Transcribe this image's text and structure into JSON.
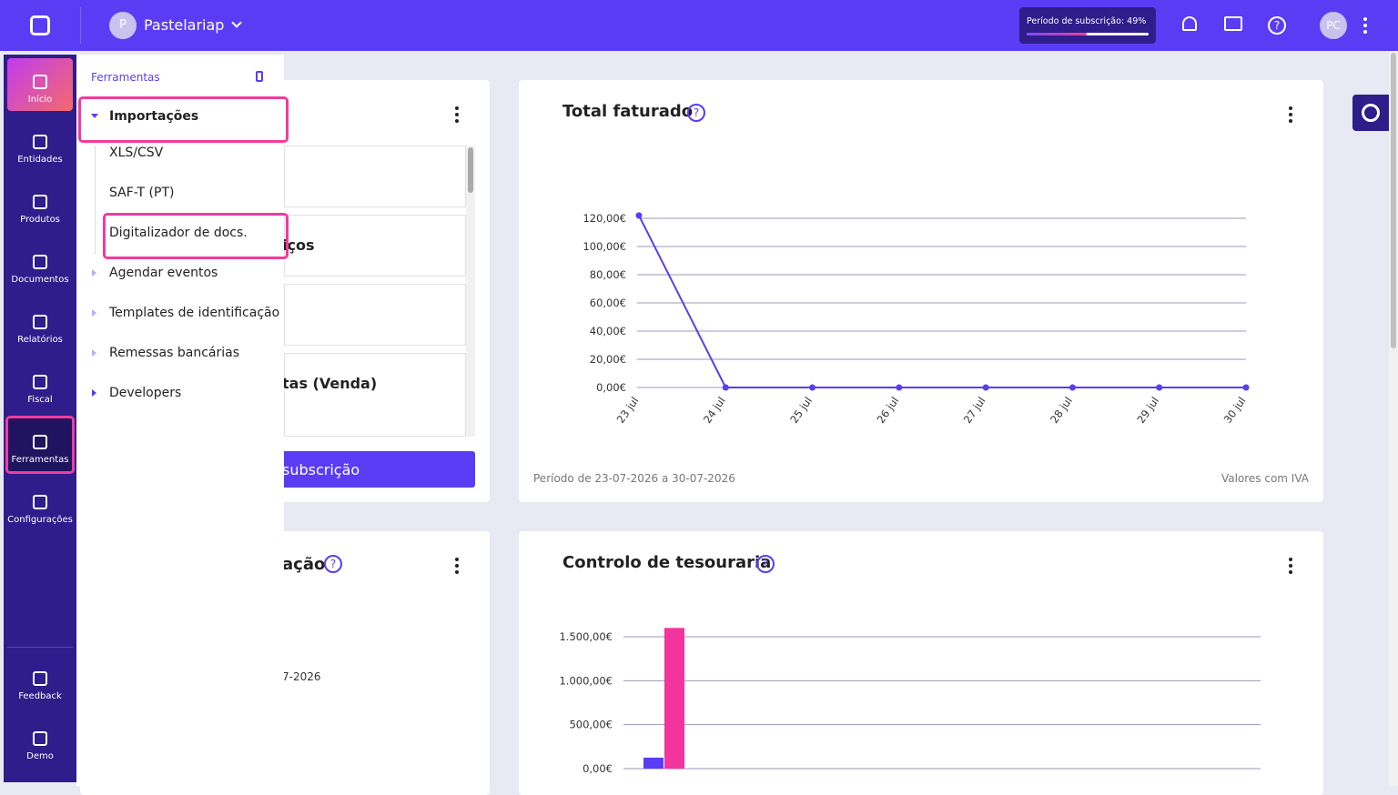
{
  "topbar": {
    "company_initial": "P",
    "company": "Pastelariap",
    "subscription": "Período de subscrição: 49%",
    "subscription_progress": 49,
    "avatar": "PC"
  },
  "sidebar": {
    "items": [
      "Início",
      "Entidades",
      "Produtos",
      "Documentos",
      "Relatórios",
      "Fiscal",
      "Ferramentas",
      "Configurações"
    ],
    "bottom": [
      "Feedback",
      "Demo"
    ]
  },
  "menu": {
    "title": "Ferramentas",
    "items": [
      "Importações",
      "XLS/CSV",
      "SAF-T (PT)",
      "Digitalizador de docs.",
      "Agendar eventos",
      "Templates de identificação",
      "Remessas bancárias",
      "Developers"
    ]
  },
  "hidden_cards": {
    "texts": [
      "iços",
      "tas (Venda)",
      "subscrição",
      "ação",
      "7-2026"
    ]
  },
  "charts": [
    {
      "type": "line",
      "title": "Total faturado",
      "color": "#5b3cf5",
      "categories": [
        "23 jul",
        "24 jul",
        "25 jul",
        "26 jul",
        "27 jul",
        "28 jul",
        "29 jul",
        "30 jul"
      ],
      "values": [
        122,
        0,
        0,
        0,
        0,
        0,
        0,
        0
      ],
      "ylim": [
        0,
        120
      ],
      "yticks": [
        {
          "value": 0,
          "label": "0,00€"
        },
        {
          "value": 20,
          "label": "20,00€"
        },
        {
          "value": 40,
          "label": "40,00€"
        },
        {
          "value": 60,
          "label": "60,00€"
        },
        {
          "value": 80,
          "label": "80,00€"
        },
        {
          "value": 100,
          "label": "100,00€"
        },
        {
          "value": 120,
          "label": "120,00€"
        }
      ],
      "grid": true,
      "footer_left": "Período de 23-07-2026 a 30-07-2026",
      "footer_right": "Valores com IVA"
    },
    {
      "type": "bar",
      "title": "Controlo de tesouraria",
      "categories": [
        null,
        null,
        null,
        null,
        null,
        null,
        null,
        null
      ],
      "series": [
        {
          "color": "#5b3cf5",
          "values": [
            125,
            0,
            0,
            0,
            0,
            0,
            0,
            0
          ]
        },
        {
          "color": "#f2359d",
          "values": [
            1600,
            0,
            0,
            0,
            0,
            0,
            0,
            0
          ]
        }
      ],
      "ylim": [
        0,
        1500
      ],
      "yticks": [
        {
          "value": 0,
          "label": "0,00€"
        },
        {
          "value": 500,
          "label": "500,00€"
        },
        {
          "value": 1000,
          "label": "1.000,00€"
        },
        {
          "value": 1500,
          "label": "1.500,00€"
        }
      ],
      "grid": true
    }
  ]
}
